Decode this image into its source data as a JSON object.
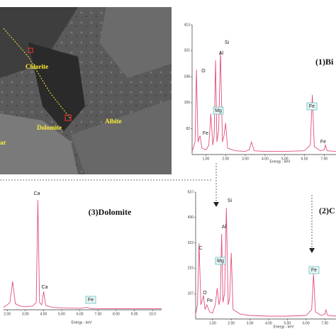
{
  "image": {
    "labels": [
      "Chlorite",
      "ar",
      "Dolomite",
      "Albite"
    ]
  },
  "chart_data": [
    {
      "type": "line",
      "title": "(1)Bi",
      "x_label": "Energy - keV",
      "color": "#e0507a",
      "x": [
        0.3,
        0.45,
        0.52,
        0.6,
        0.7,
        0.8,
        1.0,
        1.15,
        1.25,
        1.35,
        1.42,
        1.49,
        1.56,
        1.65,
        1.74,
        1.84,
        1.92,
        2.0,
        2.1,
        2.5,
        3.0,
        3.2,
        3.31,
        3.45,
        4.0,
        5.0,
        6.0,
        6.3,
        6.4,
        6.5,
        6.8,
        7.0,
        7.06,
        7.15,
        7.6
      ],
      "values": [
        10,
        40,
        270,
        40,
        60,
        20,
        15,
        30,
        130,
        30,
        60,
        300,
        40,
        80,
        330,
        40,
        60,
        100,
        20,
        12,
        10,
        15,
        40,
        12,
        10,
        10,
        12,
        30,
        190,
        25,
        12,
        15,
        30,
        12,
        10
      ],
      "xlim": [
        0.3,
        7.6
      ],
      "ylim": [
        0,
        413
      ],
      "xticks": [
        {
          "value": 1,
          "label": "1.00"
        },
        {
          "value": 2,
          "label": "2.00"
        },
        {
          "value": 3,
          "label": "3.00"
        },
        {
          "value": 4,
          "label": "4.00"
        },
        {
          "value": 5,
          "label": "5.00"
        },
        {
          "value": 6,
          "label": "6.00"
        },
        {
          "value": 7,
          "label": "7.00"
        }
      ],
      "yticks": [
        82,
        165,
        248,
        331,
        413
      ],
      "annotations": [
        "O",
        "Fe",
        "Mg",
        "Al",
        "Si",
        "Fe",
        "Fe"
      ]
    },
    {
      "type": "line",
      "title": "(2)C",
      "x_label": "Energy - keV",
      "color": "#e0507a",
      "x": [
        0.1,
        0.2,
        0.28,
        0.38,
        0.52,
        0.6,
        0.7,
        0.85,
        1.0,
        1.15,
        1.25,
        1.35,
        1.42,
        1.49,
        1.56,
        1.65,
        1.74,
        1.84,
        1.92,
        2.0,
        2.1,
        2.5,
        3.0,
        4.0,
        5.0,
        6.0,
        6.3,
        6.4,
        6.5,
        6.8,
        7.0,
        7.06,
        7.15,
        7.6
      ],
      "values": [
        20,
        60,
        320,
        60,
        100,
        40,
        60,
        30,
        25,
        60,
        130,
        60,
        90,
        360,
        70,
        110,
        470,
        60,
        90,
        280,
        40,
        20,
        15,
        12,
        12,
        15,
        40,
        190,
        30,
        15,
        20,
        40,
        15,
        12
      ],
      "xlim": [
        0.1,
        7.6
      ],
      "ylim": [
        0,
        537
      ],
      "xticks": [
        {
          "value": 1,
          "label": "1.00"
        },
        {
          "value": 2,
          "label": "2.00"
        },
        {
          "value": 3,
          "label": "3.00"
        },
        {
          "value": 4,
          "label": "4.00"
        },
        {
          "value": 5,
          "label": "5.00"
        },
        {
          "value": 6,
          "label": "6.00"
        },
        {
          "value": 7,
          "label": "7.00"
        }
      ],
      "yticks": [
        107,
        215,
        322,
        430,
        537
      ],
      "annotations": [
        "C",
        "O",
        "Fe",
        "Mg",
        "Al",
        "Si",
        "Fe"
      ]
    },
    {
      "type": "line",
      "title": "(3)Dolomite",
      "x_label": "Energy - keV",
      "color": "#e0507a",
      "x": [
        1.8,
        2.0,
        2.15,
        2.3,
        2.45,
        2.7,
        3.0,
        3.4,
        3.6,
        3.69,
        3.78,
        3.9,
        4.01,
        4.12,
        4.5,
        5.0,
        6.0,
        6.4,
        6.6,
        7.0,
        8.0,
        9.0,
        10.0,
        10.5
      ],
      "values": [
        20,
        40,
        60,
        232,
        50,
        30,
        25,
        30,
        60,
        900,
        60,
        40,
        150,
        35,
        20,
        15,
        12,
        20,
        10,
        10,
        8,
        8,
        8,
        8
      ],
      "xlim": [
        1.8,
        10.5
      ],
      "ylim": [
        0,
        1000
      ],
      "xticks": [
        {
          "value": 2,
          "label": "2.00"
        },
        {
          "value": 3,
          "label": "3.00"
        },
        {
          "value": 4,
          "label": "4.00"
        },
        {
          "value": 5,
          "label": "5.00"
        },
        {
          "value": 6,
          "label": "6.00"
        },
        {
          "value": 7,
          "label": "7.00"
        },
        {
          "value": 8,
          "label": "8.00"
        },
        {
          "value": 9,
          "label": "9.00"
        },
        {
          "value": 10,
          "label": "10.0"
        }
      ],
      "yticks": [],
      "annotations": [
        "Ca",
        "Ca",
        "Fe"
      ]
    }
  ]
}
